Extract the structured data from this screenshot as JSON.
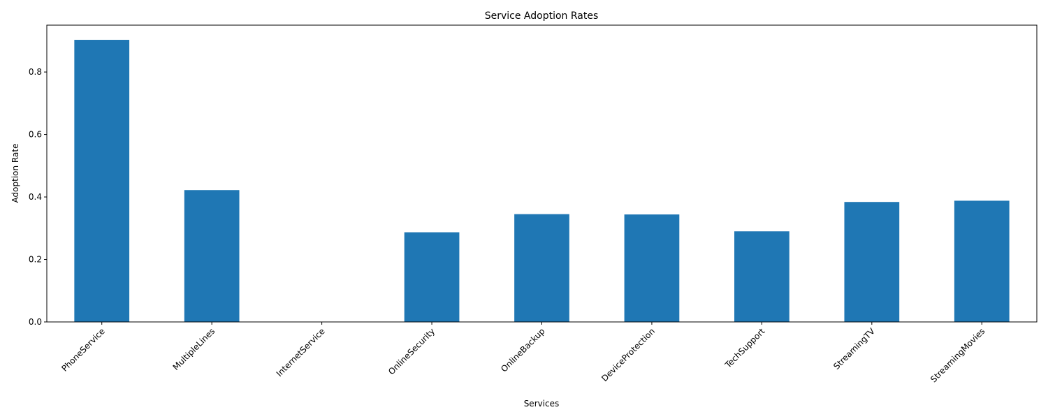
{
  "chart_data": {
    "type": "bar",
    "title": "Service Adoption Rates",
    "xlabel": "Services",
    "ylabel": "Adoption Rate",
    "categories": [
      "PhoneService",
      "MultipleLines",
      "InternetService",
      "OnlineSecurity",
      "OnlineBackup",
      "DeviceProtection",
      "TechSupport",
      "StreamingTV",
      "StreamingMovies"
    ],
    "values": [
      0.903,
      0.422,
      0.0,
      0.287,
      0.345,
      0.344,
      0.29,
      0.384,
      0.388
    ],
    "ylim": [
      0,
      0.95
    ],
    "yticks": [
      0.0,
      0.2,
      0.4,
      0.6,
      0.8
    ],
    "ytick_labels": [
      "0.0",
      "0.2",
      "0.4",
      "0.6",
      "0.8"
    ],
    "bar_color": "#1f77b4",
    "grid": false,
    "legend": "none"
  }
}
